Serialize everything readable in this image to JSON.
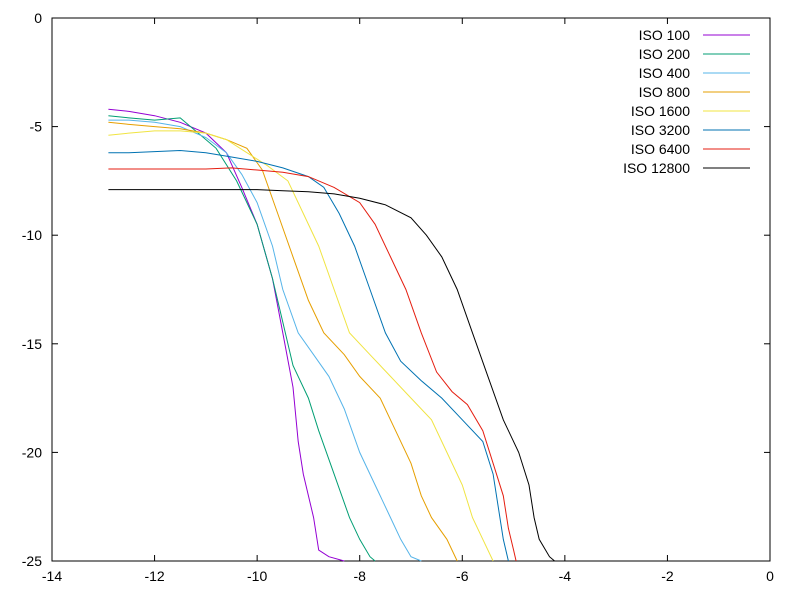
{
  "chart_data": {
    "type": "line",
    "title": "",
    "xlabel": "",
    "ylabel": "",
    "xlim": [
      -14,
      0
    ],
    "ylim": [
      -25,
      0
    ],
    "xticks": [
      -14,
      -12,
      -10,
      -8,
      -6,
      -4,
      -2,
      0
    ],
    "yticks": [
      0,
      -5,
      -10,
      -15,
      -20,
      -25
    ],
    "grid": false,
    "legend_position": "top-right",
    "series": [
      {
        "name": "ISO 100",
        "color": "#9400d3",
        "points": [
          [
            -12.9,
            -4.2
          ],
          [
            -12.5,
            -4.3
          ],
          [
            -12.0,
            -4.5
          ],
          [
            -11.5,
            -4.8
          ],
          [
            -11.0,
            -5.3
          ],
          [
            -10.6,
            -6.2
          ],
          [
            -10.3,
            -7.8
          ],
          [
            -10.0,
            -9.5
          ],
          [
            -9.7,
            -12.0
          ],
          [
            -9.5,
            -14.5
          ],
          [
            -9.3,
            -17.0
          ],
          [
            -9.2,
            -19.5
          ],
          [
            -9.1,
            -21.0
          ],
          [
            -8.9,
            -23.0
          ],
          [
            -8.8,
            -24.5
          ],
          [
            -8.6,
            -24.8
          ],
          [
            -8.3,
            -25.0
          ]
        ]
      },
      {
        "name": "ISO 200",
        "color": "#009e73",
        "points": [
          [
            -12.9,
            -4.5
          ],
          [
            -12.5,
            -4.6
          ],
          [
            -12.0,
            -4.7
          ],
          [
            -11.5,
            -4.6
          ],
          [
            -11.2,
            -5.2
          ],
          [
            -10.8,
            -6.0
          ],
          [
            -10.4,
            -7.5
          ],
          [
            -10.0,
            -9.5
          ],
          [
            -9.7,
            -12.0
          ],
          [
            -9.5,
            -14.0
          ],
          [
            -9.3,
            -16.0
          ],
          [
            -9.0,
            -17.5
          ],
          [
            -8.8,
            -19.0
          ],
          [
            -8.5,
            -21.0
          ],
          [
            -8.2,
            -23.0
          ],
          [
            -8.0,
            -24.0
          ],
          [
            -7.8,
            -24.8
          ],
          [
            -7.7,
            -25.0
          ]
        ]
      },
      {
        "name": "ISO 400",
        "color": "#56b4e9",
        "points": [
          [
            -12.9,
            -4.7
          ],
          [
            -12.5,
            -4.7
          ],
          [
            -12.0,
            -4.8
          ],
          [
            -11.5,
            -5.0
          ],
          [
            -11.0,
            -5.5
          ],
          [
            -10.6,
            -6.2
          ],
          [
            -10.3,
            -7.2
          ],
          [
            -10.0,
            -8.5
          ],
          [
            -9.7,
            -10.5
          ],
          [
            -9.5,
            -12.5
          ],
          [
            -9.2,
            -14.5
          ],
          [
            -8.9,
            -15.5
          ],
          [
            -8.6,
            -16.5
          ],
          [
            -8.3,
            -18.0
          ],
          [
            -8.0,
            -20.0
          ],
          [
            -7.7,
            -21.5
          ],
          [
            -7.4,
            -23.0
          ],
          [
            -7.2,
            -24.0
          ],
          [
            -7.0,
            -24.8
          ],
          [
            -6.8,
            -25.0
          ]
        ]
      },
      {
        "name": "ISO 800",
        "color": "#e69f00",
        "points": [
          [
            -12.9,
            -4.8
          ],
          [
            -12.5,
            -4.9
          ],
          [
            -12.0,
            -5.0
          ],
          [
            -11.5,
            -5.1
          ],
          [
            -11.0,
            -5.3
          ],
          [
            -10.6,
            -5.6
          ],
          [
            -10.2,
            -6.0
          ],
          [
            -9.9,
            -7.0
          ],
          [
            -9.6,
            -9.0
          ],
          [
            -9.3,
            -11.0
          ],
          [
            -9.0,
            -13.0
          ],
          [
            -8.7,
            -14.5
          ],
          [
            -8.3,
            -15.5
          ],
          [
            -8.0,
            -16.5
          ],
          [
            -7.6,
            -17.5
          ],
          [
            -7.3,
            -19.0
          ],
          [
            -7.0,
            -20.5
          ],
          [
            -6.8,
            -22.0
          ],
          [
            -6.6,
            -23.0
          ],
          [
            -6.3,
            -24.0
          ],
          [
            -6.1,
            -25.0
          ]
        ]
      },
      {
        "name": "ISO 1600",
        "color": "#f0e442",
        "points": [
          [
            -12.9,
            -5.4
          ],
          [
            -12.5,
            -5.3
          ],
          [
            -12.0,
            -5.2
          ],
          [
            -11.5,
            -5.2
          ],
          [
            -11.0,
            -5.3
          ],
          [
            -10.6,
            -5.6
          ],
          [
            -10.2,
            -6.2
          ],
          [
            -9.8,
            -6.8
          ],
          [
            -9.4,
            -7.5
          ],
          [
            -9.1,
            -9.0
          ],
          [
            -8.8,
            -10.5
          ],
          [
            -8.5,
            -12.5
          ],
          [
            -8.2,
            -14.5
          ],
          [
            -7.8,
            -15.5
          ],
          [
            -7.4,
            -16.5
          ],
          [
            -7.0,
            -17.5
          ],
          [
            -6.6,
            -18.5
          ],
          [
            -6.3,
            -20.0
          ],
          [
            -6.0,
            -21.5
          ],
          [
            -5.8,
            -23.0
          ],
          [
            -5.6,
            -24.0
          ],
          [
            -5.4,
            -25.0
          ]
        ]
      },
      {
        "name": "ISO 3200",
        "color": "#0072b2",
        "points": [
          [
            -12.9,
            -6.2
          ],
          [
            -12.5,
            -6.2
          ],
          [
            -12.0,
            -6.15
          ],
          [
            -11.5,
            -6.1
          ],
          [
            -11.0,
            -6.2
          ],
          [
            -10.5,
            -6.4
          ],
          [
            -10.0,
            -6.6
          ],
          [
            -9.5,
            -6.9
          ],
          [
            -9.0,
            -7.3
          ],
          [
            -8.7,
            -7.8
          ],
          [
            -8.4,
            -9.0
          ],
          [
            -8.1,
            -10.5
          ],
          [
            -7.8,
            -12.5
          ],
          [
            -7.5,
            -14.5
          ],
          [
            -7.2,
            -15.8
          ],
          [
            -6.8,
            -16.7
          ],
          [
            -6.4,
            -17.5
          ],
          [
            -6.0,
            -18.5
          ],
          [
            -5.6,
            -19.5
          ],
          [
            -5.4,
            -21.0
          ],
          [
            -5.3,
            -22.5
          ],
          [
            -5.2,
            -24.0
          ],
          [
            -5.1,
            -25.0
          ]
        ]
      },
      {
        "name": "ISO 6400",
        "color": "#e51e10",
        "points": [
          [
            -12.9,
            -6.95
          ],
          [
            -12.5,
            -6.95
          ],
          [
            -12.0,
            -6.95
          ],
          [
            -11.5,
            -6.95
          ],
          [
            -11.0,
            -6.95
          ],
          [
            -10.5,
            -6.9
          ],
          [
            -10.0,
            -7.0
          ],
          [
            -9.5,
            -7.1
          ],
          [
            -9.0,
            -7.3
          ],
          [
            -8.5,
            -7.8
          ],
          [
            -8.0,
            -8.5
          ],
          [
            -7.7,
            -9.5
          ],
          [
            -7.4,
            -11.0
          ],
          [
            -7.1,
            -12.5
          ],
          [
            -6.8,
            -14.5
          ],
          [
            -6.5,
            -16.3
          ],
          [
            -6.2,
            -17.2
          ],
          [
            -5.9,
            -17.8
          ],
          [
            -5.6,
            -19.0
          ],
          [
            -5.4,
            -20.5
          ],
          [
            -5.2,
            -22.0
          ],
          [
            -5.1,
            -23.5
          ],
          [
            -5.0,
            -24.5
          ],
          [
            -4.95,
            -25.0
          ]
        ]
      },
      {
        "name": "ISO 12800",
        "color": "#000000",
        "points": [
          [
            -12.9,
            -7.9
          ],
          [
            -12.5,
            -7.9
          ],
          [
            -12.0,
            -7.9
          ],
          [
            -11.5,
            -7.9
          ],
          [
            -11.0,
            -7.9
          ],
          [
            -10.5,
            -7.9
          ],
          [
            -10.0,
            -7.9
          ],
          [
            -9.5,
            -7.95
          ],
          [
            -9.0,
            -8.0
          ],
          [
            -8.5,
            -8.1
          ],
          [
            -8.0,
            -8.3
          ],
          [
            -7.5,
            -8.6
          ],
          [
            -7.0,
            -9.2
          ],
          [
            -6.7,
            -10.0
          ],
          [
            -6.4,
            -11.0
          ],
          [
            -6.1,
            -12.5
          ],
          [
            -5.8,
            -14.5
          ],
          [
            -5.5,
            -16.5
          ],
          [
            -5.2,
            -18.5
          ],
          [
            -4.9,
            -20.0
          ],
          [
            -4.7,
            -21.5
          ],
          [
            -4.6,
            -23.0
          ],
          [
            -4.5,
            -24.0
          ],
          [
            -4.3,
            -24.8
          ],
          [
            -4.2,
            -25.0
          ]
        ]
      }
    ]
  }
}
